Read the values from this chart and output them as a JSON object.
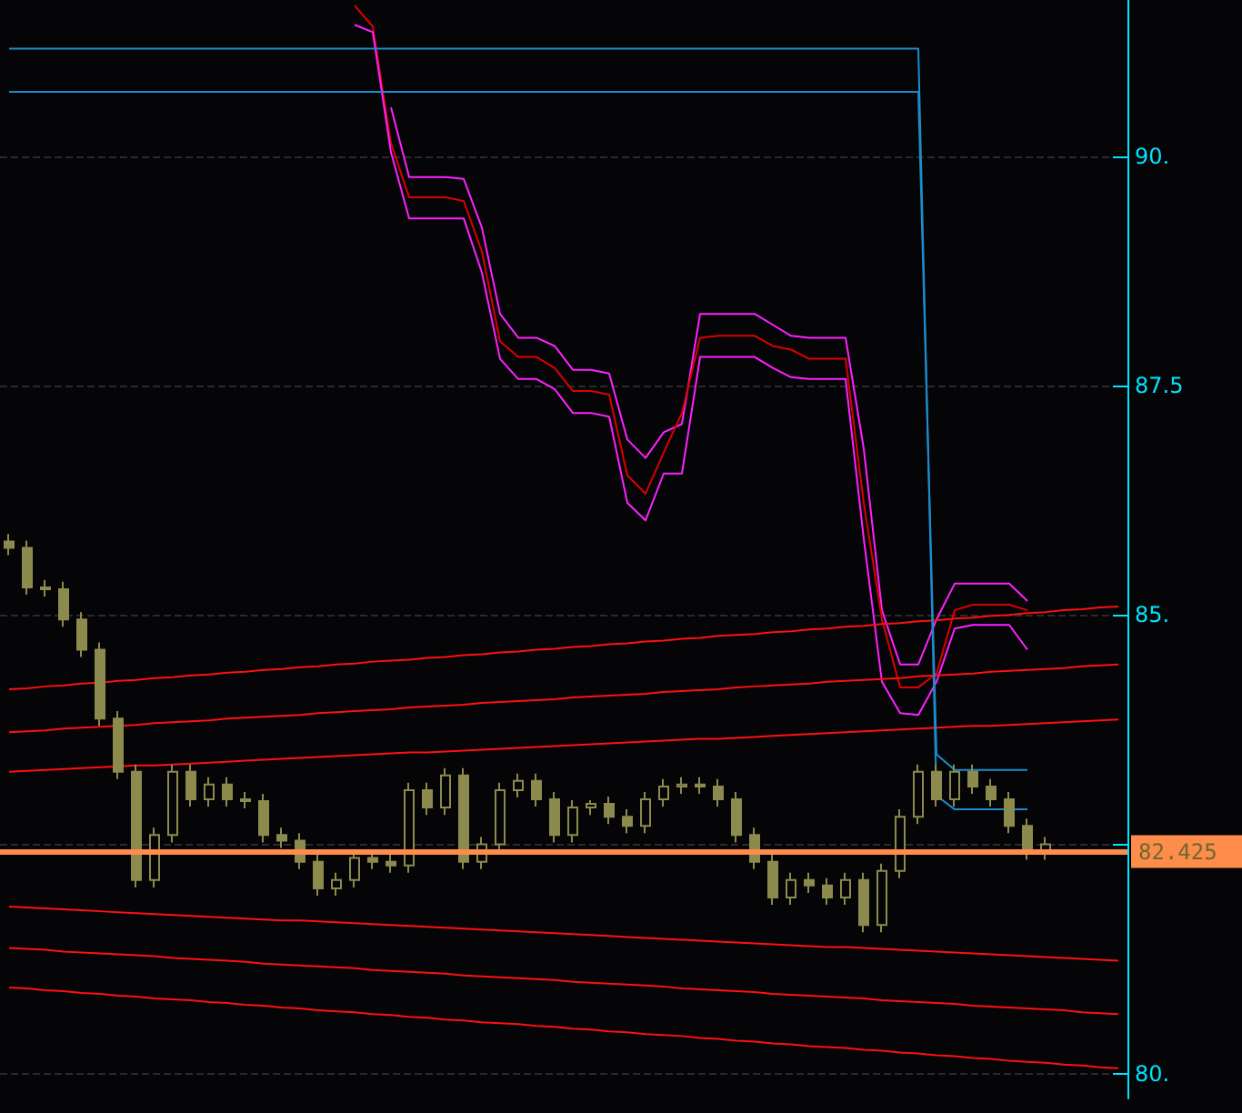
{
  "chart_data": {
    "type": "candlestick",
    "color": "#8c8a4c",
    "marker": "none",
    "grid": "y",
    "categories": [
      null,
      null,
      null,
      null,
      null,
      null,
      null,
      null,
      null,
      null,
      null,
      null,
      null,
      null,
      null,
      null,
      null,
      null,
      null,
      null,
      null,
      null,
      null,
      null,
      null,
      null,
      null,
      null,
      null,
      null,
      null,
      null,
      null,
      null,
      null,
      null,
      null,
      null,
      null,
      null,
      null,
      null,
      null,
      null,
      null,
      null,
      null,
      null,
      null,
      null,
      null,
      null,
      null,
      null,
      null,
      null,
      null,
      null,
      null,
      null,
      null,
      null
    ],
    "ohlc": [
      [
        85.8,
        85.88,
        85.65,
        85.73
      ],
      [
        85.73,
        85.81,
        85.22,
        85.3
      ],
      [
        85.3,
        85.38,
        85.2,
        85.28
      ],
      [
        85.28,
        85.36,
        84.87,
        84.95
      ],
      [
        84.95,
        85.03,
        84.54,
        84.62
      ],
      [
        84.62,
        84.7,
        83.79,
        83.87
      ],
      [
        83.87,
        83.95,
        83.21,
        83.29
      ],
      [
        83.29,
        83.37,
        82.03,
        82.11
      ],
      [
        82.11,
        82.68,
        82.03,
        82.6
      ],
      [
        82.6,
        83.37,
        82.52,
        83.29
      ],
      [
        83.29,
        83.37,
        82.91,
        82.99
      ],
      [
        82.99,
        83.23,
        82.91,
        83.15
      ],
      [
        83.15,
        83.23,
        82.91,
        82.99
      ],
      [
        82.99,
        83.07,
        82.89,
        82.97
      ],
      [
        82.97,
        83.05,
        82.52,
        82.6
      ],
      [
        82.6,
        82.68,
        82.46,
        82.54
      ],
      [
        82.54,
        82.62,
        82.23,
        82.31
      ],
      [
        82.31,
        82.39,
        81.94,
        82.02
      ],
      [
        82.02,
        82.19,
        81.94,
        82.11
      ],
      [
        82.11,
        82.43,
        82.03,
        82.35
      ],
      [
        82.35,
        82.43,
        82.23,
        82.31
      ],
      [
        82.31,
        82.39,
        82.19,
        82.27
      ],
      [
        82.27,
        83.17,
        82.19,
        83.09
      ],
      [
        83.09,
        83.17,
        82.82,
        82.9
      ],
      [
        82.9,
        83.33,
        82.82,
        83.25
      ],
      [
        83.25,
        83.33,
        82.23,
        82.31
      ],
      [
        82.31,
        82.58,
        82.23,
        82.5
      ],
      [
        82.5,
        83.17,
        82.42,
        83.09
      ],
      [
        83.09,
        83.27,
        83.01,
        83.19
      ],
      [
        83.19,
        83.27,
        82.91,
        82.99
      ],
      [
        82.99,
        83.07,
        82.52,
        82.6
      ],
      [
        82.6,
        82.98,
        82.52,
        82.9
      ],
      [
        82.9,
        82.98,
        82.82,
        82.94
      ],
      [
        82.94,
        83.02,
        82.72,
        82.8
      ],
      [
        82.8,
        82.88,
        82.62,
        82.7
      ],
      [
        82.7,
        83.07,
        82.62,
        82.99
      ],
      [
        82.99,
        83.21,
        82.91,
        83.13
      ],
      [
        83.13,
        83.23,
        83.05,
        83.15
      ],
      [
        83.15,
        83.23,
        83.05,
        83.13
      ],
      [
        83.13,
        83.21,
        82.91,
        82.99
      ],
      [
        82.99,
        83.07,
        82.52,
        82.6
      ],
      [
        82.6,
        82.68,
        82.23,
        82.31
      ],
      [
        82.31,
        82.39,
        81.84,
        81.92
      ],
      [
        81.92,
        82.19,
        81.84,
        82.11
      ],
      [
        82.11,
        82.19,
        81.97,
        82.05
      ],
      [
        82.05,
        82.13,
        81.84,
        81.92
      ],
      [
        81.92,
        82.19,
        81.84,
        82.11
      ],
      [
        82.11,
        82.19,
        81.54,
        81.62
      ],
      [
        81.62,
        82.29,
        81.54,
        82.21
      ],
      [
        82.21,
        82.88,
        82.13,
        82.8
      ],
      [
        82.8,
        83.37,
        82.72,
        83.29
      ],
      [
        83.29,
        83.37,
        82.91,
        82.99
      ],
      [
        82.99,
        83.37,
        82.91,
        83.29
      ],
      [
        83.29,
        83.37,
        83.05,
        83.13
      ],
      [
        83.13,
        83.21,
        82.91,
        82.99
      ],
      [
        82.99,
        83.07,
        82.62,
        82.7
      ],
      [
        82.7,
        82.78,
        82.33,
        82.41
      ],
      [
        82.41,
        82.58,
        82.33,
        82.5
      ],
      null,
      null,
      null,
      null
    ],
    "series": [
      {
        "type": "line",
        "color": "#ff22ff",
        "values": [
          null,
          null,
          null,
          null,
          null,
          null,
          null,
          null,
          null,
          null,
          null,
          null,
          null,
          null,
          null,
          null,
          null,
          null,
          null,
          null,
          null,
          90.53,
          89.77,
          89.77,
          89.77,
          89.75,
          89.22,
          88.28,
          88.02,
          88.02,
          87.93,
          87.67,
          87.67,
          87.63,
          86.91,
          86.71,
          86.99,
          87.08,
          88.28,
          88.28,
          88.28,
          88.28,
          88.16,
          88.04,
          88.02,
          88.02,
          88.02,
          86.81,
          85.05,
          84.46,
          84.46,
          84.95,
          85.34,
          85.34,
          85.34,
          85.34,
          85.15,
          null,
          null,
          null,
          null,
          null
        ]
      },
      {
        "type": "line",
        "color": "#dd0000",
        "values": [
          null,
          null,
          null,
          null,
          null,
          null,
          null,
          null,
          null,
          null,
          null,
          null,
          null,
          null,
          null,
          null,
          null,
          null,
          null,
          91.64,
          91.41,
          90.14,
          89.55,
          89.55,
          89.55,
          89.51,
          88.96,
          87.98,
          87.81,
          87.81,
          87.69,
          87.44,
          87.44,
          87.4,
          86.52,
          86.32,
          86.77,
          87.2,
          88.02,
          88.04,
          88.04,
          88.04,
          87.93,
          87.89,
          87.79,
          87.79,
          87.79,
          86.22,
          84.95,
          84.21,
          84.21,
          84.36,
          85.05,
          85.11,
          85.11,
          85.11,
          85.05,
          null,
          null,
          null,
          null,
          null
        ]
      },
      {
        "type": "line",
        "color": "#ff22ff",
        "values": [
          null,
          null,
          null,
          null,
          null,
          null,
          null,
          null,
          null,
          null,
          null,
          null,
          null,
          null,
          null,
          null,
          null,
          null,
          null,
          91.43,
          91.35,
          90.04,
          89.32,
          89.32,
          89.32,
          89.32,
          88.73,
          87.79,
          87.57,
          87.57,
          87.46,
          87.2,
          87.2,
          87.16,
          86.22,
          86.03,
          86.54,
          86.54,
          87.81,
          87.81,
          87.81,
          87.81,
          87.69,
          87.59,
          87.57,
          87.57,
          87.57,
          85.83,
          84.27,
          83.93,
          83.91,
          84.27,
          84.85,
          84.89,
          84.89,
          84.89,
          84.62,
          null,
          null,
          null,
          null,
          null
        ]
      },
      {
        "type": "line",
        "color": "#ff1010",
        "values": [
          84.19,
          84.2,
          84.22,
          84.23,
          84.25,
          84.26,
          84.28,
          84.29,
          84.31,
          84.32,
          84.34,
          84.35,
          84.37,
          84.38,
          84.4,
          84.41,
          84.43,
          84.44,
          84.46,
          84.47,
          84.49,
          84.5,
          84.51,
          84.53,
          84.54,
          84.56,
          84.57,
          84.59,
          84.6,
          84.62,
          84.63,
          84.65,
          84.66,
          84.68,
          84.69,
          84.71,
          84.72,
          84.74,
          84.75,
          84.77,
          84.78,
          84.79,
          84.81,
          84.82,
          84.84,
          84.85,
          84.87,
          84.88,
          84.9,
          84.91,
          84.93,
          84.94,
          84.96,
          84.97,
          84.99,
          85.0,
          85.02,
          85.03,
          85.05,
          85.06,
          85.08,
          85.09
        ]
      },
      {
        "type": "line",
        "color": "#ff1010",
        "values": [
          83.72,
          83.73,
          83.74,
          83.76,
          83.77,
          83.78,
          83.79,
          83.8,
          83.82,
          83.83,
          83.84,
          83.85,
          83.87,
          83.88,
          83.89,
          83.9,
          83.91,
          83.93,
          83.94,
          83.95,
          83.96,
          83.97,
          83.99,
          84.0,
          84.01,
          84.02,
          84.04,
          84.05,
          84.06,
          84.07,
          84.08,
          84.1,
          84.11,
          84.12,
          84.13,
          84.14,
          84.16,
          84.17,
          84.18,
          84.19,
          84.21,
          84.22,
          84.23,
          84.24,
          84.25,
          84.27,
          84.28,
          84.29,
          84.3,
          84.31,
          84.33,
          84.34,
          84.35,
          84.36,
          84.38,
          84.39,
          84.4,
          84.41,
          84.42,
          84.44,
          84.45,
          84.46
        ]
      },
      {
        "type": "line",
        "color": "#ff1010",
        "values": [
          83.29,
          83.3,
          83.31,
          83.32,
          83.33,
          83.34,
          83.35,
          83.36,
          83.36,
          83.37,
          83.38,
          83.39,
          83.4,
          83.41,
          83.42,
          83.43,
          83.44,
          83.45,
          83.46,
          83.47,
          83.48,
          83.49,
          83.5,
          83.5,
          83.51,
          83.52,
          83.53,
          83.54,
          83.55,
          83.56,
          83.57,
          83.58,
          83.59,
          83.6,
          83.61,
          83.62,
          83.63,
          83.64,
          83.65,
          83.65,
          83.66,
          83.67,
          83.68,
          83.69,
          83.7,
          83.71,
          83.72,
          83.73,
          83.74,
          83.75,
          83.76,
          83.77,
          83.78,
          83.79,
          83.79,
          83.8,
          83.81,
          83.82,
          83.83,
          83.84,
          83.85,
          83.86
        ]
      },
      {
        "type": "line",
        "color": "#ff1010",
        "values": [
          81.82,
          81.81,
          81.8,
          81.79,
          81.78,
          81.77,
          81.76,
          81.75,
          81.74,
          81.73,
          81.72,
          81.71,
          81.7,
          81.69,
          81.68,
          81.67,
          81.67,
          81.66,
          81.65,
          81.64,
          81.63,
          81.62,
          81.61,
          81.6,
          81.59,
          81.58,
          81.57,
          81.56,
          81.55,
          81.54,
          81.53,
          81.52,
          81.51,
          81.5,
          81.49,
          81.48,
          81.47,
          81.46,
          81.45,
          81.44,
          81.43,
          81.42,
          81.41,
          81.4,
          81.39,
          81.38,
          81.38,
          81.37,
          81.36,
          81.35,
          81.34,
          81.33,
          81.32,
          81.31,
          81.3,
          81.29,
          81.28,
          81.27,
          81.26,
          81.25,
          81.24,
          81.23
        ]
      },
      {
        "type": "line",
        "color": "#ff1010",
        "values": [
          81.37,
          81.36,
          81.35,
          81.33,
          81.32,
          81.31,
          81.3,
          81.29,
          81.28,
          81.26,
          81.25,
          81.24,
          81.23,
          81.22,
          81.2,
          81.19,
          81.18,
          81.17,
          81.16,
          81.15,
          81.13,
          81.12,
          81.11,
          81.1,
          81.09,
          81.07,
          81.06,
          81.05,
          81.04,
          81.03,
          81.02,
          81.0,
          80.99,
          80.98,
          80.97,
          80.96,
          80.95,
          80.93,
          80.92,
          80.91,
          80.9,
          80.89,
          80.87,
          80.86,
          80.85,
          80.84,
          80.83,
          80.82,
          80.8,
          80.79,
          80.78,
          80.77,
          80.76,
          80.74,
          80.73,
          80.72,
          80.71,
          80.7,
          80.69,
          80.67,
          80.66,
          80.65
        ]
      },
      {
        "type": "line",
        "color": "#ff1010",
        "values": [
          80.94,
          80.93,
          80.91,
          80.9,
          80.88,
          80.87,
          80.85,
          80.84,
          80.82,
          80.81,
          80.8,
          80.78,
          80.77,
          80.75,
          80.74,
          80.72,
          80.71,
          80.69,
          80.68,
          80.67,
          80.65,
          80.64,
          80.62,
          80.61,
          80.59,
          80.58,
          80.56,
          80.55,
          80.54,
          80.52,
          80.51,
          80.49,
          80.48,
          80.46,
          80.45,
          80.43,
          80.42,
          80.41,
          80.39,
          80.38,
          80.36,
          80.35,
          80.33,
          80.32,
          80.3,
          80.29,
          80.28,
          80.26,
          80.25,
          80.23,
          80.22,
          80.2,
          80.19,
          80.17,
          80.16,
          80.14,
          80.13,
          80.12,
          80.1,
          80.09,
          80.07,
          80.06
        ]
      },
      {
        "type": "line",
        "color": "#1e8ccc",
        "values": [
          91.17,
          91.17,
          91.17,
          91.17,
          91.17,
          91.17,
          91.17,
          91.17,
          91.17,
          91.17,
          91.17,
          91.17,
          91.17,
          91.17,
          91.17,
          91.17,
          91.17,
          91.17,
          91.17,
          91.17,
          91.17,
          91.17,
          91.17,
          91.17,
          91.17,
          91.17,
          91.17,
          91.17,
          91.17,
          91.17,
          91.17,
          91.17,
          91.17,
          91.17,
          91.17,
          91.17,
          91.17,
          91.17,
          91.17,
          91.17,
          91.17,
          91.17,
          91.17,
          91.17,
          91.17,
          91.17,
          91.17,
          91.17,
          91.17,
          91.17,
          91.17,
          83.03,
          82.88,
          82.88,
          82.88,
          82.88,
          82.88,
          null,
          null,
          null,
          null,
          null
        ]
      },
      {
        "type": "line",
        "color": "#1e8ccc",
        "values": [
          90.7,
          90.7,
          90.7,
          90.7,
          90.7,
          90.7,
          90.7,
          90.7,
          90.7,
          90.7,
          90.7,
          90.7,
          90.7,
          90.7,
          90.7,
          90.7,
          90.7,
          90.7,
          90.7,
          90.7,
          90.7,
          90.7,
          90.7,
          90.7,
          90.7,
          90.7,
          90.7,
          90.7,
          90.7,
          90.7,
          90.7,
          90.7,
          90.7,
          90.7,
          90.7,
          90.7,
          90.7,
          90.7,
          90.7,
          90.7,
          90.7,
          90.7,
          90.7,
          90.7,
          90.7,
          90.7,
          90.7,
          90.7,
          90.7,
          90.7,
          90.7,
          83.48,
          83.31,
          83.31,
          83.31,
          83.31,
          83.31,
          null,
          null,
          null,
          null,
          null
        ]
      }
    ],
    "ref_lines": [
      {
        "axis": "y",
        "value": 82.425,
        "label": "82.425",
        "color": "#ff8c4a"
      }
    ],
    "ylim": [
      79.73,
      91.7
    ],
    "yticks": [
      {
        "value": 80,
        "label": "80."
      },
      {
        "value": 82.5,
        "label": null
      },
      {
        "value": 85,
        "label": "85."
      },
      {
        "value": 87.5,
        "label": "87.5"
      },
      {
        "value": 90,
        "label": "90."
      }
    ]
  }
}
